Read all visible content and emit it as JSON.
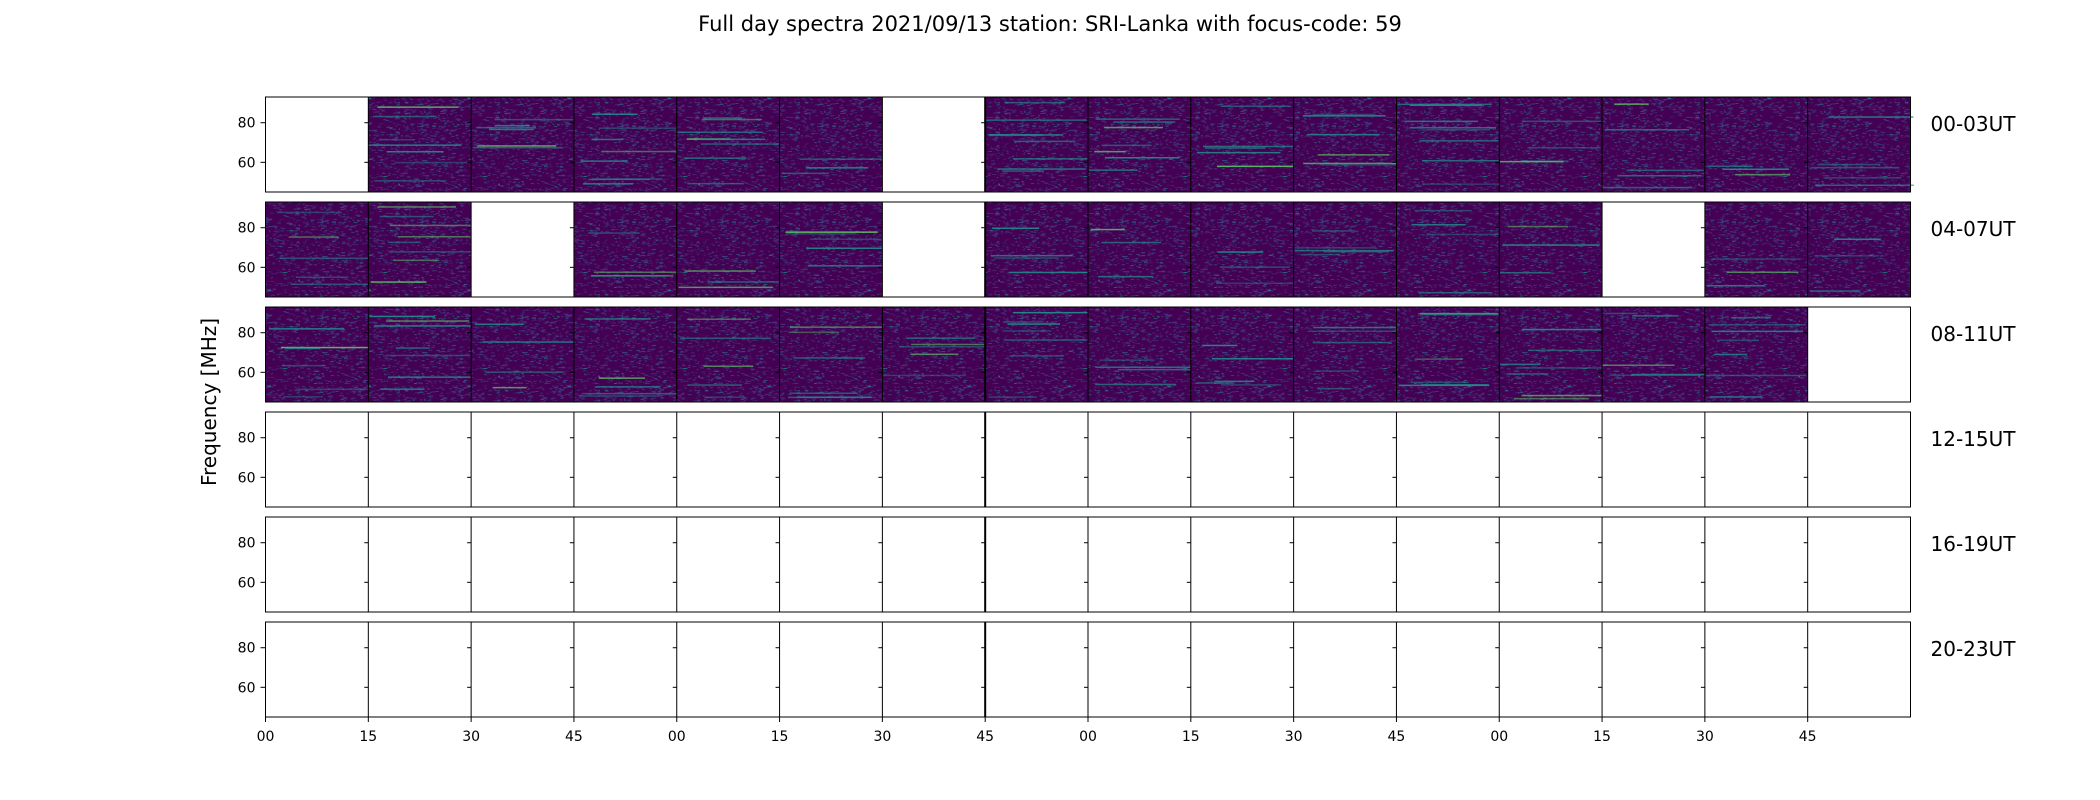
{
  "chart_data": {
    "type": "heatmap",
    "title": "Full day spectra 2021/09/13 station: SRI-Lanka with focus-code: 59",
    "ylabel": "Frequency [MHz]",
    "y_ticks": [
      "60",
      "80"
    ],
    "ylim": [
      45,
      93
    ],
    "x_ticks": [
      "00",
      "15",
      "30",
      "45",
      "00",
      "15",
      "30",
      "45",
      "00",
      "15",
      "30",
      "45",
      "00",
      "15",
      "30",
      "45"
    ],
    "colormap": "viridis",
    "rows": [
      {
        "label": "00-03UT",
        "panels": [
          0,
          1,
          1,
          1,
          1,
          1,
          0,
          1,
          1,
          1,
          1,
          1,
          1,
          1,
          1,
          1
        ]
      },
      {
        "label": "04-07UT",
        "panels": [
          1,
          1,
          0,
          1,
          1,
          1,
          0,
          1,
          1,
          1,
          1,
          1,
          1,
          0,
          1,
          1
        ]
      },
      {
        "label": "08-11UT",
        "panels": [
          1,
          1,
          1,
          1,
          1,
          1,
          1,
          1,
          1,
          1,
          1,
          1,
          1,
          1,
          1,
          0
        ]
      },
      {
        "label": "12-15UT",
        "panels": [
          0,
          0,
          0,
          0,
          0,
          0,
          0,
          0,
          0,
          0,
          0,
          0,
          0,
          0,
          0,
          0
        ]
      },
      {
        "label": "16-19UT",
        "panels": [
          0,
          0,
          0,
          0,
          0,
          0,
          0,
          0,
          0,
          0,
          0,
          0,
          0,
          0,
          0,
          0
        ]
      },
      {
        "label": "20-23UT",
        "panels": [
          0,
          0,
          0,
          0,
          0,
          0,
          0,
          0,
          0,
          0,
          0,
          0,
          0,
          0,
          0,
          0
        ]
      }
    ],
    "colors": {
      "background": "#440154",
      "noise": "#3b528b",
      "signal": "#21918c",
      "strong": "#5ec962",
      "peak": "#fde725",
      "empty": "#ffffff"
    }
  }
}
